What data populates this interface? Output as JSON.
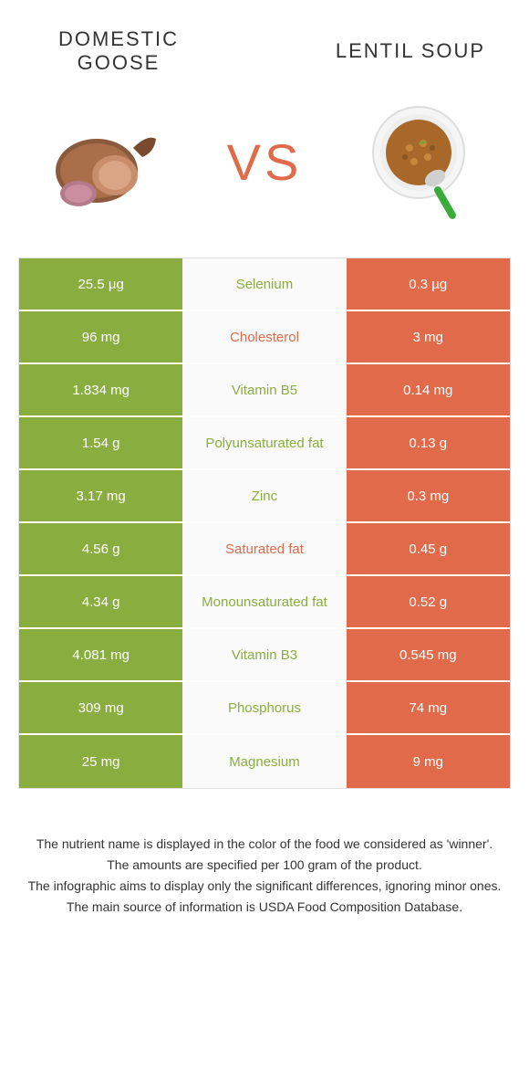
{
  "food1": {
    "name": "DOMESTIC GOOSE",
    "color": "#8aad3f"
  },
  "food2": {
    "name": "LENTIL SOUP",
    "color": "#e06a4a"
  },
  "vs": "VS",
  "rows": [
    {
      "left": "25.5 µg",
      "mid": "Selenium",
      "right": "0.3 µg",
      "winner": "food1"
    },
    {
      "left": "96 mg",
      "mid": "Cholesterol",
      "right": "3 mg",
      "winner": "food2"
    },
    {
      "left": "1.834 mg",
      "mid": "Vitamin B5",
      "right": "0.14 mg",
      "winner": "food1"
    },
    {
      "left": "1.54 g",
      "mid": "Polyunsaturated fat",
      "right": "0.13 g",
      "winner": "food1"
    },
    {
      "left": "3.17 mg",
      "mid": "Zinc",
      "right": "0.3 mg",
      "winner": "food1"
    },
    {
      "left": "4.56 g",
      "mid": "Saturated fat",
      "right": "0.45 g",
      "winner": "food2"
    },
    {
      "left": "4.34 g",
      "mid": "Monounsaturated fat",
      "right": "0.52 g",
      "winner": "food1"
    },
    {
      "left": "4.081 mg",
      "mid": "Vitamin B3",
      "right": "0.545 mg",
      "winner": "food1"
    },
    {
      "left": "309 mg",
      "mid": "Phosphorus",
      "right": "74 mg",
      "winner": "food1"
    },
    {
      "left": "25 mg",
      "mid": "Magnesium",
      "right": "9 mg",
      "winner": "food1"
    }
  ],
  "footer": [
    "The nutrient name is displayed in the color of the food we considered as 'winner'.",
    "The amounts are specified per 100 gram of the product.",
    "The infographic aims to display only the significant differences, ignoring minor ones.",
    "The main source of information is USDA Food Composition Database."
  ]
}
